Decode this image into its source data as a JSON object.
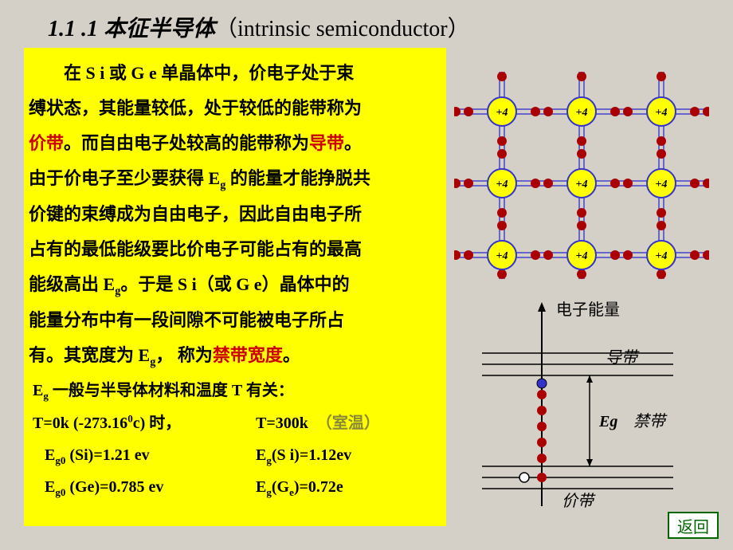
{
  "title": {
    "number": "1.1 .1",
    "main": "本征半导体",
    "en": "（intrinsic semiconductor）"
  },
  "paragraph": {
    "p1a": "　　在 ",
    "si": "S i ",
    "p1b": "或 ",
    "ge": "G e ",
    "p1c": " 单晶体中，价电子处于束",
    "p2": "缚状态，其能量较低，处于较低的能带称为",
    "p3a_red": "价带",
    "p3b": "。而自由电子处较高的能带称为",
    "p3c_red": "导带",
    "p3d": "。",
    "p4a": "由于价电子至少要获得 E",
    "p4sub": "g",
    "p4b": " 的能量才能挣脱共",
    "p5": "价键的束缚成为自由电子，因此自由电子所",
    "p6": "占有的最低能级要比价电子可能占有的最高",
    "p7a": "能级高出 E",
    "p7sub": "g",
    "p7b": "。于是 S i（或  G e）晶体中的",
    "p8": "能量分布中有一段间隙不可能被电子所占",
    "p9a": "有。其宽度为 E",
    "p9sub": "g",
    "p9b": "， 称为",
    "p9c_red": "禁带宽度",
    "p9d": "。"
  },
  "equations": {
    "line1a": "E",
    "line1sub": "g",
    "line1b": " 一般与半导体材料和温度 T 有关：",
    "line2_left": "T=0k (-273.16",
    "line2_sup": "0",
    "line2_left2": "c)  时，",
    "line2_right": "T=300k",
    "line2_note": "（室温）",
    "line3_left": "E",
    "line3_sub1": "g0",
    "line3_left2": " (Si)=1.21 ev",
    "line3_right": "E",
    "line3_sub2": "g",
    "line3_right2": "(S i)=1.12ev",
    "line4_left": "E",
    "line4_sub1": "g0",
    "line4_left2": " (Ge)=0.785 ev",
    "line4_right": "E",
    "line4_sub2": "g",
    "line4_right2": "(G",
    "line4_sub3": "e",
    "line4_right3": ")=0.72e"
  },
  "lattice": {
    "atom_label": "+4",
    "rows": 3,
    "cols": 3,
    "atom_radius": 18,
    "atom_fill": "#ffff00",
    "atom_stroke": "#3333cc",
    "electron_radius": 6,
    "electron_fill": "#aa0000",
    "electron_stroke": "#aa0000",
    "bond_color": "#6666cc",
    "bg": "#d4d0c8"
  },
  "band": {
    "axis_label": "电子能量",
    "conduction_label": "导带",
    "forbidden_label": "禁带",
    "eg_label": "Eg",
    "valence_label": "价带",
    "line_color": "#000000",
    "electron_fill": "#aa0000",
    "hole_fill": "#3333cc",
    "open_fill": "#ffffff"
  },
  "return_button": "返回",
  "colors": {
    "bg": "#d4d0c8",
    "textbox_bg": "#ffff00",
    "text": "#000000",
    "red": "#cc0000",
    "faint": "#8a8a35"
  }
}
